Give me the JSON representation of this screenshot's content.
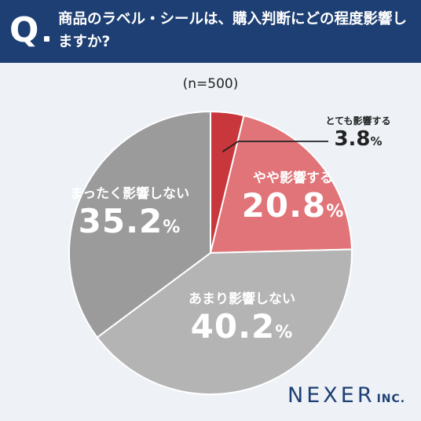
{
  "header": {
    "q_mark": "Q",
    "question": "商品のラベル・シールは、購入判断にどの程度影響しますか?"
  },
  "sample_label": "(n=500)",
  "chart_data": {
    "type": "pie",
    "title": "商品のラベル・シールは、購入判断にどの程度影響しますか?",
    "note": "(n=500)",
    "slices": [
      {
        "label": "とても影響する",
        "value": 3.8,
        "display": "3.8",
        "color": "#c8373c"
      },
      {
        "label": "やや影響する",
        "value": 20.8,
        "display": "20.8",
        "color": "#e07478"
      },
      {
        "label": "あまり影響しない",
        "value": 40.2,
        "display": "40.2",
        "color": "#b4b4b4"
      },
      {
        "label": "まったく影響しない",
        "value": 35.2,
        "display": "35.2",
        "color": "#9b9b9b"
      }
    ],
    "unit": "%",
    "start": "12 o'clock",
    "direction": "clockwise"
  },
  "logo": {
    "main": "NEXER",
    "sub": "INC."
  }
}
